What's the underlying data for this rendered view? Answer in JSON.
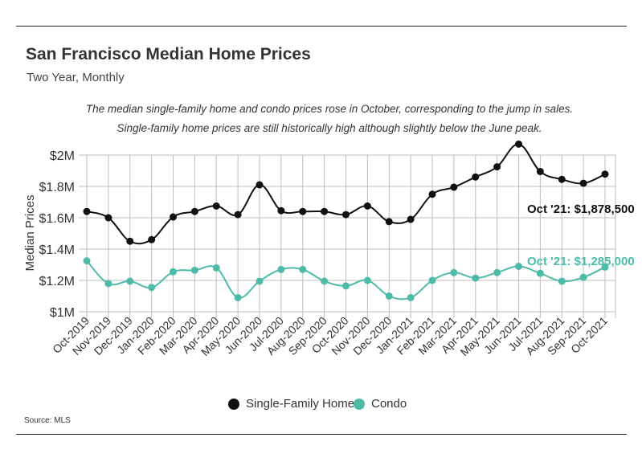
{
  "title": "San Francisco Median Home Prices",
  "subtitle": "Two Year, Monthly",
  "notes": [
    "The median single-family home and condo prices rose in October, corresponding to the jump in sales.",
    "Single-family home prices are still historically high although slightly below the June peak."
  ],
  "source": "Source:  MLS",
  "colors": {
    "single_family": "#111111",
    "condo": "#4dbba8",
    "grid": "#bdbdbd"
  },
  "chart_data": {
    "type": "line",
    "categories": [
      "Oct-2019",
      "Nov-2019",
      "Dec-2019",
      "Jan-2020",
      "Feb-2020",
      "Mar-2020",
      "Apr-2020",
      "May-2020",
      "Jun-2020",
      "Jul-2020",
      "Aug-2020",
      "Sep-2020",
      "Oct-2020",
      "Nov-2020",
      "Dec-2020",
      "Jan-2021",
      "Feb-2021",
      "Mar-2021",
      "Apr-2021",
      "May-2021",
      "Jun-2021",
      "Jul-2021",
      "Aug-2021",
      "Sep-2021",
      "Oct-2021"
    ],
    "series": [
      {
        "name": "Single-Family Home",
        "values": [
          1640000,
          1600000,
          1450000,
          1460000,
          1605000,
          1640000,
          1675000,
          1620000,
          1810000,
          1645000,
          1640000,
          1640000,
          1620000,
          1675000,
          1575000,
          1590000,
          1750000,
          1795000,
          1860000,
          1925000,
          2070000,
          1895000,
          1845000,
          1820000,
          1878500
        ]
      },
      {
        "name": "Condo",
        "values": [
          1325000,
          1180000,
          1195000,
          1155000,
          1255000,
          1265000,
          1280000,
          1090000,
          1195000,
          1270000,
          1270000,
          1195000,
          1165000,
          1200000,
          1100000,
          1090000,
          1200000,
          1250000,
          1215000,
          1250000,
          1290000,
          1245000,
          1195000,
          1220000,
          1285000
        ]
      }
    ],
    "ylabel": "Median Prices",
    "ylim": [
      1000000,
      2000000
    ],
    "yticks": [
      "$1M",
      "$1.2M",
      "$1.4M",
      "$1.6M",
      "$1.8M",
      "$2M"
    ],
    "grid": true,
    "annotations": [
      {
        "series": "Single-Family Home",
        "label": "Oct '21: $1,878,500"
      },
      {
        "series": "Condo",
        "label": "Oct '21: $1,285,000"
      }
    ],
    "legend_position": "bottom"
  }
}
